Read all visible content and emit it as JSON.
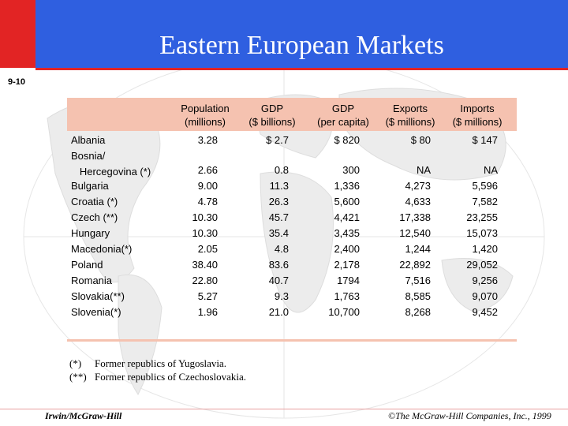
{
  "slide": {
    "title": "Eastern European Markets",
    "slide_number": "9-10",
    "colors": {
      "header_blue": "#2f5fe0",
      "accent_red": "#e22424",
      "table_band": "#f5c2b0"
    }
  },
  "table": {
    "columns": [
      {
        "line1": "Population",
        "line2": "(millions)"
      },
      {
        "line1": "GDP",
        "line2": "($ billions)"
      },
      {
        "line1": "GDP",
        "line2": "(per capita)"
      },
      {
        "line1": "Exports",
        "line2": "($ millions)"
      },
      {
        "line1": "Imports",
        "line2": "($ millions)"
      }
    ],
    "rows": [
      {
        "label": "Albania",
        "values": [
          "3.28",
          "$ 2.7",
          "$ 820",
          "$ 80",
          "$ 147"
        ]
      },
      {
        "label": "Bosnia/\n   Hercegovina (*)",
        "values": [
          "2.66",
          "0.8",
          "300",
          "NA",
          "NA"
        ]
      },
      {
        "label": "Bulgaria",
        "values": [
          "9.00",
          "11.3",
          "1,336",
          "4,273",
          "5,596"
        ]
      },
      {
        "label": "Croatia (*)",
        "values": [
          "4.78",
          "26.3",
          "5,600",
          "4,633",
          "7,582"
        ]
      },
      {
        "label": "Czech (**)",
        "values": [
          "10.30",
          "45.7",
          "4,421",
          "17,338",
          "23,255"
        ]
      },
      {
        "label": "Hungary",
        "values": [
          "10.30",
          "35.4",
          "3,435",
          "12,540",
          "15,073"
        ]
      },
      {
        "label": "Macedonia(*)",
        "values": [
          "2.05",
          "4.8",
          "2,400",
          "1,244",
          "1,420"
        ]
      },
      {
        "label": "Poland",
        "values": [
          "38.40",
          "83.6",
          "2,178",
          "22,892",
          "29,052"
        ]
      },
      {
        "label": "Romania",
        "values": [
          "22.80",
          "40.7",
          "1794",
          "7,516",
          "9,256"
        ]
      },
      {
        "label": "Slovakia(**)",
        "values": [
          "5.27",
          "9.3",
          "1,763",
          "8,585",
          "9,070"
        ]
      },
      {
        "label": "Slovenia(*)",
        "values": [
          "1.96",
          "21.0",
          "10,700",
          "8,268",
          "9,452"
        ]
      }
    ]
  },
  "notes": [
    {
      "mark": "(*)",
      "text": "Former republics of Yugoslavia."
    },
    {
      "mark": "(**)",
      "text": "Former republics of Czechoslovakia."
    }
  ],
  "footer": {
    "publisher": "Irwin/McGraw-Hill",
    "copyright": "©The McGraw-Hill Companies, Inc., 1999"
  }
}
